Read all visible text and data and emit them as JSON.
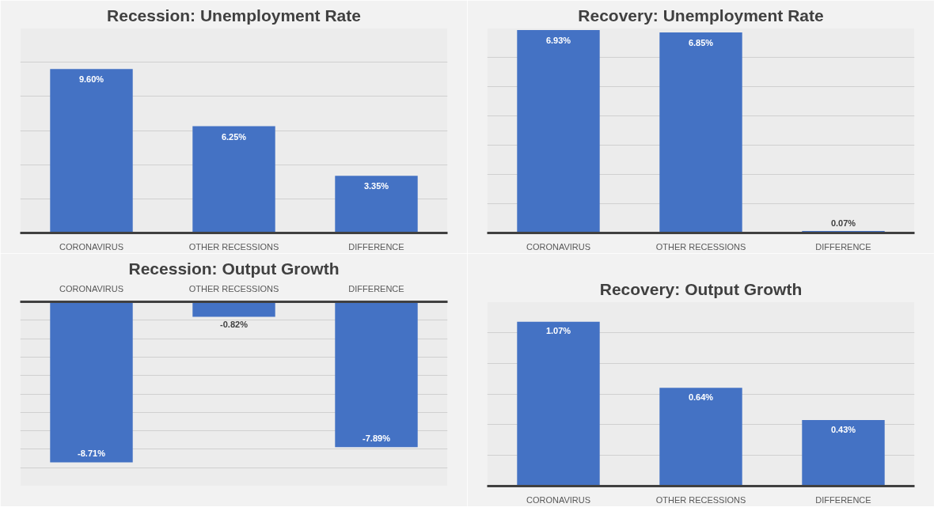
{
  "chart_data": [
    {
      "type": "bar",
      "title": "Recession: Unemployment Rate",
      "categories": [
        "CORONAVIRUS",
        "OTHER RECESSIONS",
        "DIFFERENCE"
      ],
      "values": [
        9.6,
        6.25,
        3.35
      ],
      "value_labels": [
        "9.60%",
        "6.25%",
        "3.35%"
      ],
      "color": "#4472c4",
      "ylim": [
        0,
        12
      ],
      "yticks": [
        {
          "value": 0,
          "label": null
        },
        {
          "value": 2,
          "label": null
        },
        {
          "value": 4,
          "label": null
        },
        {
          "value": 6,
          "label": null
        },
        {
          "value": 8,
          "label": null
        },
        {
          "value": 10,
          "label": null
        },
        {
          "value": 12,
          "label": null
        }
      ],
      "grid": "y",
      "tick_labels": "x"
    },
    {
      "type": "bar",
      "title": "Recovery: Unemployment Rate",
      "categories": [
        "CORONAVIRUS",
        "OTHER RECESSIONS",
        "DIFFERENCE"
      ],
      "values": [
        6.93,
        6.85,
        0.07
      ],
      "value_labels": [
        "6.93%",
        "6.85%",
        "0.07%"
      ],
      "color": "#4472c4",
      "ylim": [
        0,
        7
      ],
      "yticks": [
        {
          "value": 0,
          "label": null
        },
        {
          "value": 1,
          "label": null
        },
        {
          "value": 2,
          "label": null
        },
        {
          "value": 3,
          "label": null
        },
        {
          "value": 4,
          "label": null
        },
        {
          "value": 5,
          "label": null
        },
        {
          "value": 6,
          "label": null
        },
        {
          "value": 7,
          "label": null
        }
      ],
      "grid": "y",
      "tick_labels": "x"
    },
    {
      "type": "bar",
      "title": "Recession: Output Growth",
      "categories": [
        "CORONAVIRUS",
        "OTHER RECESSIONS",
        "DIFFERENCE"
      ],
      "values": [
        -8.71,
        -0.82,
        -7.89
      ],
      "value_labels": [
        "-8.71%",
        "-0.82%",
        "-7.89%"
      ],
      "color": "#4472c4",
      "ylim": [
        -10,
        0
      ],
      "yticks": [
        {
          "value": -10,
          "label": null
        },
        {
          "value": -9,
          "label": null
        },
        {
          "value": -8,
          "label": null
        },
        {
          "value": -7,
          "label": null
        },
        {
          "value": -6,
          "label": null
        },
        {
          "value": -5,
          "label": null
        },
        {
          "value": -4,
          "label": null
        },
        {
          "value": -3,
          "label": null
        },
        {
          "value": -2,
          "label": null
        },
        {
          "value": -1,
          "label": null
        },
        {
          "value": 0,
          "label": null
        }
      ],
      "grid": "y",
      "tick_labels": "x"
    },
    {
      "type": "bar",
      "title": "Recovery: Output Growth",
      "categories": [
        "CORONAVIRUS",
        "OTHER RECESSIONS",
        "DIFFERENCE"
      ],
      "values": [
        1.07,
        0.64,
        0.43
      ],
      "value_labels": [
        "1.07%",
        "0.64%",
        "0.43%"
      ],
      "color": "#4472c4",
      "ylim": [
        0,
        1.2
      ],
      "yticks": [
        {
          "value": 0,
          "label": null
        },
        {
          "value": 0.2,
          "label": null
        },
        {
          "value": 0.4,
          "label": null
        },
        {
          "value": 0.6,
          "label": null
        },
        {
          "value": 0.8,
          "label": null
        },
        {
          "value": 1.0,
          "label": null
        },
        {
          "value": 1.2,
          "label": null
        }
      ],
      "grid": "y",
      "tick_labels": "x"
    }
  ]
}
